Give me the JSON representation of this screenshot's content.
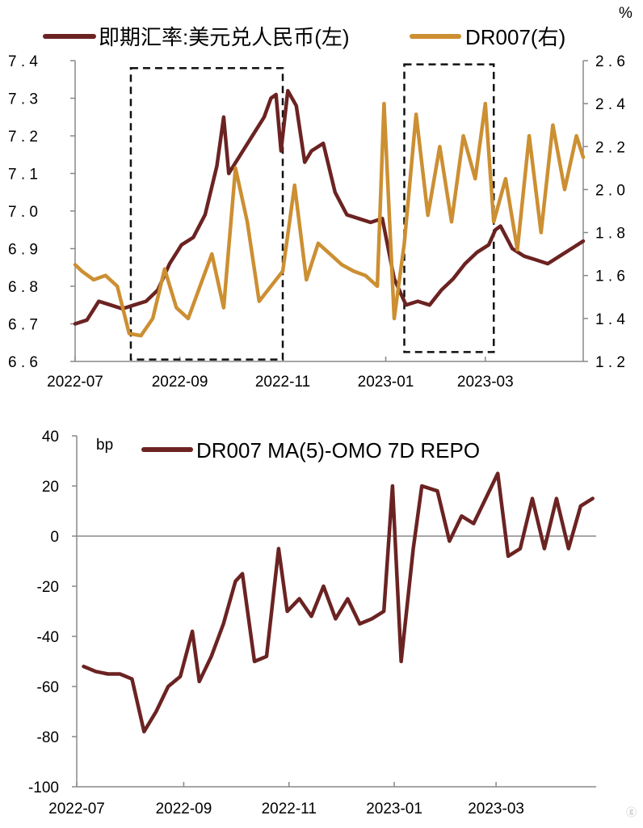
{
  "colors": {
    "rate": "#6b2322",
    "dr007": "#cc8f32",
    "axis": "#888888",
    "spread": "#6b2322"
  },
  "chart_data": [
    {
      "type": "line",
      "legend": [
        "即期汇率:美元兑人民币(左)",
        "DR007(右)"
      ],
      "unit_right": "%",
      "x_ticks": [
        "2022-07",
        "2022-09",
        "2022-11",
        "2023-01",
        "2023-03"
      ],
      "x_range": [
        "2022-07-01",
        "2023-04-28"
      ],
      "y_left_ticks": [
        "6.6",
        "6.7",
        "6.8",
        "6.9",
        "7.0",
        "7.1",
        "7.2",
        "7.3",
        "7.4"
      ],
      "y_left_range": [
        6.6,
        7.4
      ],
      "y_right_ticks": [
        "1.2",
        "1.4",
        "1.6",
        "1.8",
        "2.0",
        "2.2",
        "2.4",
        "2.6"
      ],
      "y_right_range": [
        1.2,
        2.6
      ],
      "highlight_boxes": [
        {
          "x": [
            "2022-08-03",
            "2022-11-01"
          ],
          "y_left": [
            6.605,
            7.38
          ]
        },
        {
          "x": [
            "2023-01-12",
            "2023-03-06"
          ],
          "y_left": [
            6.625,
            7.39
          ]
        }
      ],
      "series": [
        {
          "name": "即期汇率:美元兑人民币(左)",
          "axis": "left",
          "x": [
            "2022-07-01",
            "2022-07-08",
            "2022-07-15",
            "2022-07-22",
            "2022-07-29",
            "2022-08-05",
            "2022-08-12",
            "2022-08-19",
            "2022-08-26",
            "2022-09-02",
            "2022-09-09",
            "2022-09-16",
            "2022-09-23",
            "2022-09-27",
            "2022-09-30",
            "2022-10-07",
            "2022-10-14",
            "2022-10-21",
            "2022-10-25",
            "2022-10-28",
            "2022-10-31",
            "2022-11-04",
            "2022-11-09",
            "2022-11-14",
            "2022-11-18",
            "2022-11-25",
            "2022-12-02",
            "2022-12-09",
            "2022-12-16",
            "2022-12-23",
            "2022-12-30",
            "2023-01-06",
            "2023-01-13",
            "2023-01-20",
            "2023-01-27",
            "2023-02-03",
            "2023-02-10",
            "2023-02-17",
            "2023-02-24",
            "2023-03-03",
            "2023-03-07",
            "2023-03-10",
            "2023-03-17",
            "2023-03-24",
            "2023-03-31",
            "2023-04-07",
            "2023-04-14",
            "2023-04-21",
            "2023-04-28"
          ],
          "y": [
            6.7,
            6.71,
            6.76,
            6.75,
            6.74,
            6.75,
            6.76,
            6.79,
            6.86,
            6.91,
            6.93,
            6.99,
            7.12,
            7.25,
            7.1,
            7.15,
            7.2,
            7.25,
            7.3,
            7.31,
            7.16,
            7.32,
            7.28,
            7.13,
            7.16,
            7.18,
            7.05,
            6.99,
            6.98,
            6.97,
            6.98,
            6.82,
            6.75,
            6.76,
            6.75,
            6.79,
            6.82,
            6.86,
            6.89,
            6.91,
            6.95,
            6.96,
            6.9,
            6.88,
            6.87,
            6.86,
            6.88,
            6.9,
            6.92
          ]
        },
        {
          "name": "DR007(右)",
          "axis": "right",
          "x": [
            "2022-07-01",
            "2022-07-05",
            "2022-07-12",
            "2022-07-19",
            "2022-07-26",
            "2022-08-02",
            "2022-08-09",
            "2022-08-16",
            "2022-08-23",
            "2022-08-30",
            "2022-09-06",
            "2022-09-13",
            "2022-09-20",
            "2022-09-27",
            "2022-10-04",
            "2022-10-11",
            "2022-10-18",
            "2022-10-25",
            "2022-11-01",
            "2022-11-08",
            "2022-11-15",
            "2022-11-22",
            "2022-11-29",
            "2022-12-06",
            "2022-12-13",
            "2022-12-20",
            "2022-12-27",
            "2022-12-31",
            "2023-01-06",
            "2023-01-12",
            "2023-01-19",
            "2023-01-26",
            "2023-02-02",
            "2023-02-09",
            "2023-02-16",
            "2023-02-23",
            "2023-03-01",
            "2023-03-06",
            "2023-03-13",
            "2023-03-20",
            "2023-03-27",
            "2023-04-03",
            "2023-04-10",
            "2023-04-17",
            "2023-04-24",
            "2023-04-28"
          ],
          "y": [
            1.65,
            1.62,
            1.58,
            1.6,
            1.55,
            1.33,
            1.32,
            1.4,
            1.63,
            1.45,
            1.4,
            1.55,
            1.7,
            1.45,
            2.1,
            1.85,
            1.48,
            1.55,
            1.62,
            2.02,
            1.58,
            1.75,
            1.7,
            1.65,
            1.62,
            1.6,
            1.55,
            2.4,
            1.4,
            1.75,
            2.35,
            1.88,
            2.2,
            1.85,
            2.25,
            2.05,
            2.4,
            1.85,
            2.05,
            1.72,
            2.25,
            1.8,
            2.3,
            2.0,
            2.25,
            2.15
          ]
        }
      ]
    },
    {
      "type": "line",
      "legend": [
        "DR007 MA(5)-OMO 7D REPO"
      ],
      "unit_left": "bp",
      "x_ticks": [
        "2022-07",
        "2022-09",
        "2022-11",
        "2023-01",
        "2023-03"
      ],
      "x_range": [
        "2022-07-01",
        "2023-04-28"
      ],
      "y_ticks": [
        "40",
        "20",
        "0",
        "-20",
        "-40",
        "-60",
        "-80",
        "-100"
      ],
      "y_range": [
        -100,
        40
      ],
      "series": [
        {
          "name": "DR007 MA(5)-OMO 7D REPO",
          "x": [
            "2022-07-05",
            "2022-07-12",
            "2022-07-19",
            "2022-07-26",
            "2022-08-02",
            "2022-08-09",
            "2022-08-16",
            "2022-08-23",
            "2022-08-30",
            "2022-09-06",
            "2022-09-10",
            "2022-09-17",
            "2022-09-24",
            "2022-10-01",
            "2022-10-05",
            "2022-10-12",
            "2022-10-19",
            "2022-10-26",
            "2022-10-31",
            "2022-11-07",
            "2022-11-14",
            "2022-11-21",
            "2022-11-28",
            "2022-12-05",
            "2022-12-12",
            "2022-12-19",
            "2022-12-26",
            "2022-12-31",
            "2023-01-05",
            "2023-01-12",
            "2023-01-17",
            "2023-01-26",
            "2023-02-02",
            "2023-02-09",
            "2023-02-16",
            "2023-02-23",
            "2023-03-02",
            "2023-03-08",
            "2023-03-15",
            "2023-03-22",
            "2023-03-29",
            "2023-04-05",
            "2023-04-12",
            "2023-04-19",
            "2023-04-26"
          ],
          "y": [
            -52,
            -54,
            -55,
            -55,
            -57,
            -78,
            -70,
            -60,
            -56,
            -38,
            -58,
            -48,
            -35,
            -18,
            -15,
            -50,
            -48,
            -5,
            -30,
            -25,
            -32,
            -20,
            -33,
            -25,
            -35,
            -33,
            -30,
            20,
            -50,
            -5,
            20,
            18,
            -2,
            8,
            5,
            15,
            25,
            -8,
            -5,
            15,
            -5,
            15,
            -5,
            12,
            15
          ]
        }
      ]
    }
  ]
}
